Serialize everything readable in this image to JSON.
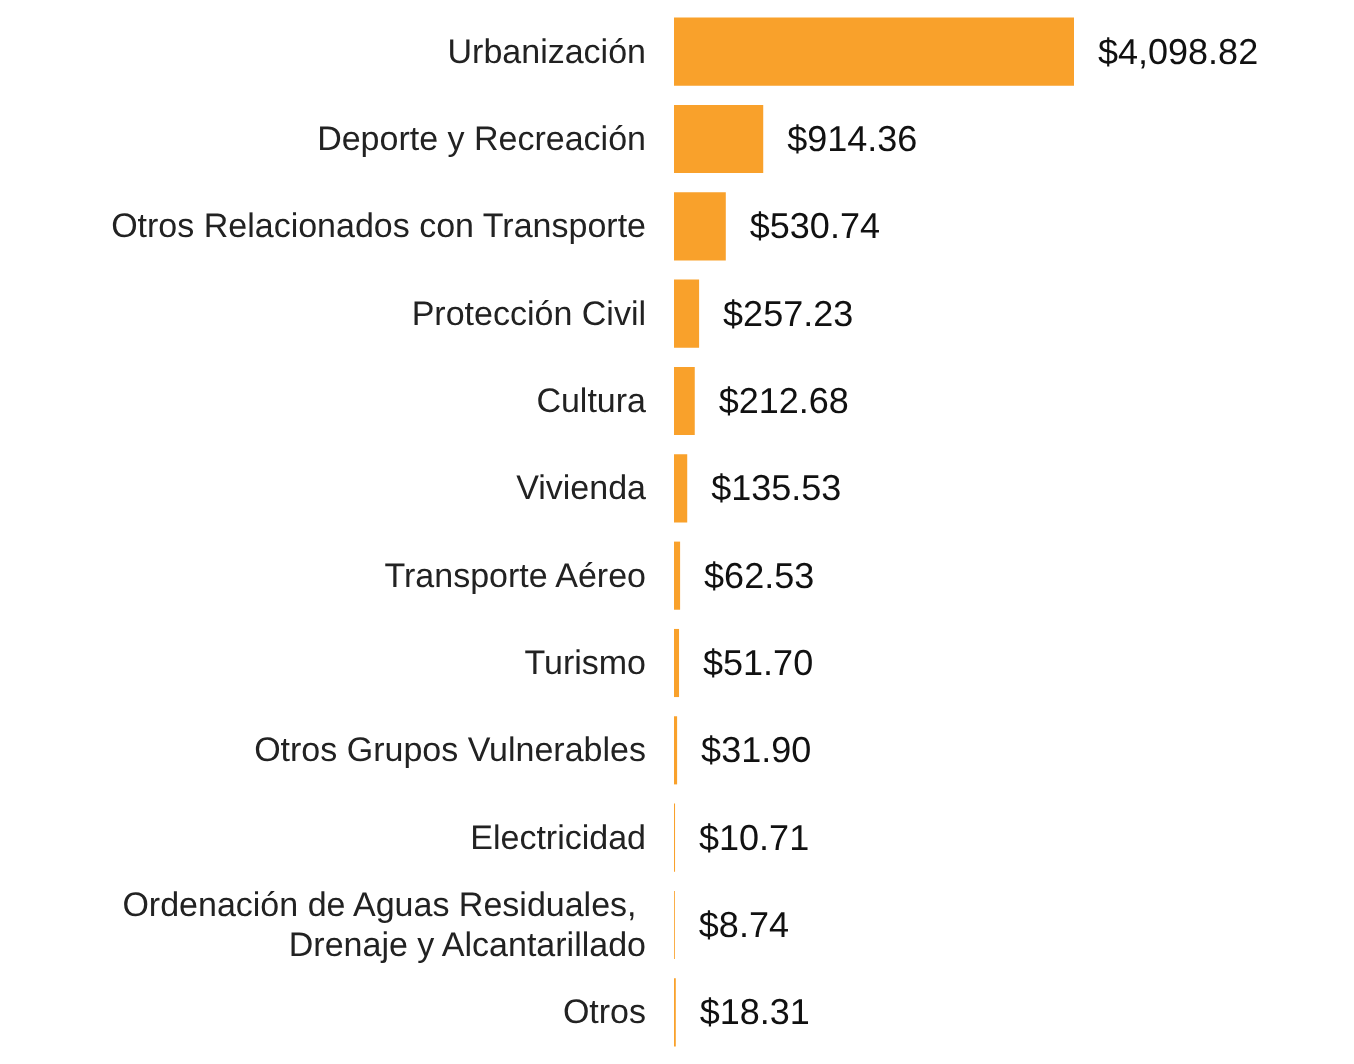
{
  "chart_data": {
    "type": "bar",
    "orientation": "horizontal",
    "categories": [
      "Urbanización",
      "Deporte y Recreación",
      "Otros Relacionados con Transporte",
      "Protección Civil",
      "Cultura",
      "Vivienda",
      "Transporte Aéreo",
      "Turismo",
      "Otros Grupos Vulnerables",
      "Electricidad",
      "Ordenación de Aguas Residuales, Drenaje y Alcantarillado",
      "Otros"
    ],
    "values": [
      4098.82,
      914.36,
      530.74,
      257.23,
      212.68,
      135.53,
      62.53,
      51.7,
      31.9,
      10.71,
      8.74,
      18.31
    ],
    "value_labels": [
      "$4,098.82",
      "$914.36",
      "$530.74",
      "$257.23",
      "$212.68",
      "$135.53",
      "$62.53",
      "$51.70",
      "$31.90",
      "$10.71",
      "$8.74",
      "$18.31"
    ],
    "color": "#f9a12b"
  }
}
